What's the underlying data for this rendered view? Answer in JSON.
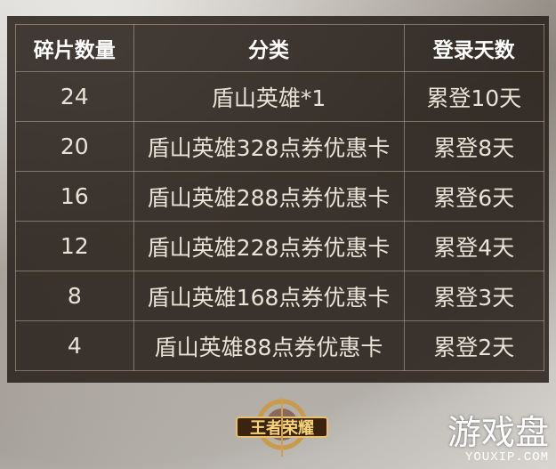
{
  "table": {
    "headers": [
      "碎片数量",
      "分类",
      "登录天数"
    ],
    "rows": [
      [
        "24",
        "盾山英雄*1",
        "累登10天"
      ],
      [
        "20",
        "盾山英雄328点券优惠卡",
        "累登8天"
      ],
      [
        "16",
        "盾山英雄288点券优惠卡",
        "累登6天"
      ],
      [
        "12",
        "盾山英雄228点券优惠卡",
        "累登4天"
      ],
      [
        "8",
        "盾山英雄168点券优惠卡",
        "累登3天"
      ],
      [
        "4",
        "盾山英雄88点券优惠卡",
        "累登2天"
      ]
    ]
  },
  "logo": {
    "text": "王者荣耀"
  },
  "watermark": {
    "cn": "游戏盘",
    "en": "YOUXIP.COM"
  }
}
